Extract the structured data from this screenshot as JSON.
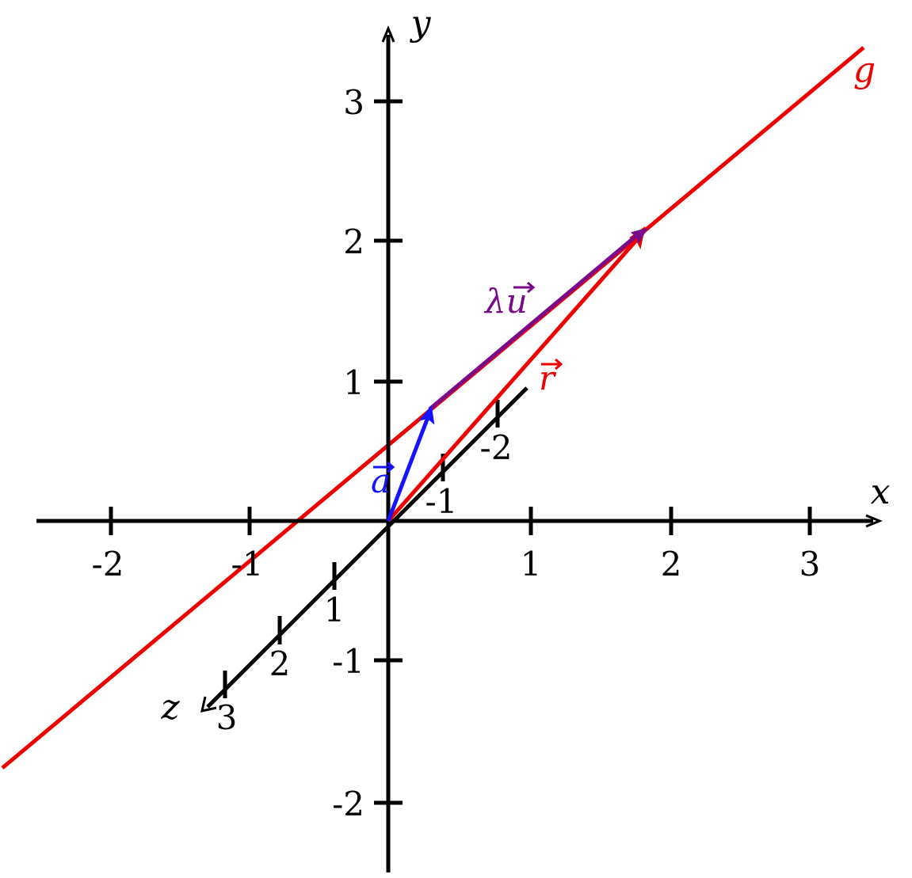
{
  "axes": {
    "x": {
      "name": "x",
      "ticks": [
        "-2",
        "-1",
        "1",
        "2",
        "3"
      ]
    },
    "y": {
      "name": "y",
      "ticks": [
        "3",
        "2",
        "1",
        "-1",
        "-2"
      ]
    },
    "z": {
      "name": "z",
      "ticks": [
        "-2",
        "-1",
        "1",
        "2",
        "3"
      ]
    }
  },
  "labels": {
    "line_g": "g",
    "vector_a": "a",
    "vector_r": "r",
    "vector_lambda_u": "λu"
  },
  "colors": {
    "axes": "#000000",
    "line_g": "#ee0000",
    "vector_a": "#1414ff",
    "vector_r": "#ee0000",
    "vector_lambda_u": "#7a0a8a"
  }
}
